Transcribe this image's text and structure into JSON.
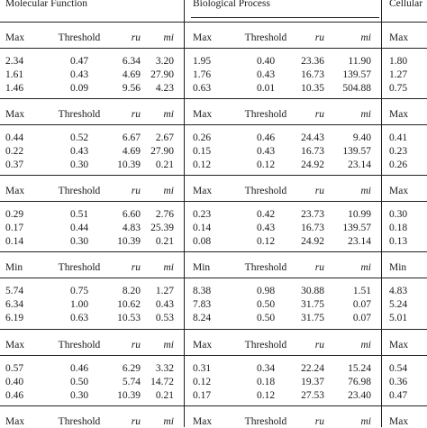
{
  "groups": {
    "mf": "Molecular Function",
    "bp": "Biological Process",
    "cc": "Cellular"
  },
  "sections": [
    {
      "header": [
        "Max",
        "Threshold",
        "ru",
        "mi",
        "Max",
        "Threshold",
        "ru",
        "mi",
        "Max"
      ],
      "rows": [
        [
          "2.34",
          "0.47",
          "6.34",
          "3.20",
          "1.95",
          "0.40",
          "23.36",
          "11.90",
          "1.80"
        ],
        [
          "1.61",
          "0.43",
          "4.69",
          "27.90",
          "1.76",
          "0.43",
          "16.73",
          "139.57",
          "1.27"
        ],
        [
          "1.46",
          "0.09",
          "9.56",
          "4.23",
          "0.63",
          "0.01",
          "10.35",
          "504.88",
          "0.75"
        ]
      ]
    },
    {
      "header": [
        "Max",
        "Threshold",
        "ru",
        "mi",
        "Max",
        "Threshold",
        "ru",
        "mi",
        "Max"
      ],
      "rows": [
        [
          "0.44",
          "0.52",
          "6.67",
          "2.67",
          "0.26",
          "0.46",
          "24.43",
          "9.40",
          "0.41"
        ],
        [
          "0.22",
          "0.43",
          "4.69",
          "27.90",
          "0.15",
          "0.43",
          "16.73",
          "139.57",
          "0.23"
        ],
        [
          "0.37",
          "0.30",
          "10.39",
          "0.21",
          "0.12",
          "0.12",
          "24.92",
          "23.14",
          "0.26"
        ]
      ]
    },
    {
      "header": [
        "Max",
        "Threshold",
        "ru",
        "mi",
        "Max",
        "Threshold",
        "ru",
        "mi",
        "Max"
      ],
      "rows": [
        [
          "0.29",
          "0.51",
          "6.60",
          "2.76",
          "0.23",
          "0.42",
          "23.73",
          "10.99",
          "0.30"
        ],
        [
          "0.17",
          "0.44",
          "4.83",
          "25.39",
          "0.14",
          "0.43",
          "16.73",
          "139.57",
          "0.18"
        ],
        [
          "0.14",
          "0.30",
          "10.39",
          "0.21",
          "0.08",
          "0.12",
          "24.92",
          "23.14",
          "0.13"
        ]
      ]
    },
    {
      "header": [
        "Min",
        "Threshold",
        "ru",
        "mi",
        "Min",
        "Threshold",
        "ru",
        "mi",
        "Min"
      ],
      "rows": [
        [
          "5.74",
          "0.75",
          "8.20",
          "1.27",
          "8.38",
          "0.98",
          "30.88",
          "1.51",
          "4.83"
        ],
        [
          "6.34",
          "1.00",
          "10.62",
          "0.43",
          "7.83",
          "0.50",
          "31.75",
          "0.07",
          "5.24"
        ],
        [
          "6.19",
          "0.63",
          "10.53",
          "0.53",
          "8.24",
          "0.50",
          "31.75",
          "0.07",
          "5.01"
        ]
      ]
    },
    {
      "header": [
        "Max",
        "Threshold",
        "ru",
        "mi",
        "Max",
        "Threshold",
        "ru",
        "mi",
        "Max"
      ],
      "rows": [
        [
          "0.57",
          "0.46",
          "6.29",
          "3.32",
          "0.31",
          "0.34",
          "22.24",
          "15.24",
          "0.54"
        ],
        [
          "0.40",
          "0.50",
          "5.74",
          "14.72",
          "0.12",
          "0.18",
          "19.37",
          "76.98",
          "0.36"
        ],
        [
          "0.46",
          "0.30",
          "10.39",
          "0.21",
          "0.17",
          "0.12",
          "27.53",
          "23.40",
          "0.47"
        ]
      ]
    },
    {
      "header": [
        "Max",
        "Threshold",
        "ru",
        "mi",
        "Max",
        "Threshold",
        "ru",
        "mi",
        "Max"
      ],
      "rows": []
    }
  ]
}
